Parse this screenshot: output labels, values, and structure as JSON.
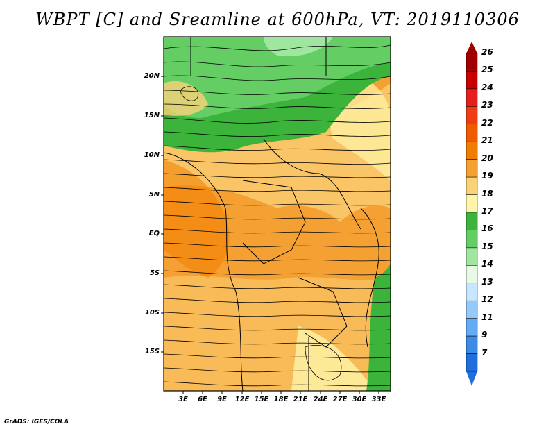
{
  "title": "WBPT [C] and Sreamline at 600hPa, VT: 2019110306",
  "footer": "GrADS: IGES/COLA",
  "lat_labels": [
    "20N",
    "15N",
    "10N",
    "5N",
    "EQ",
    "5S",
    "10S",
    "15S"
  ],
  "lon_labels": [
    "3E",
    "6E",
    "9E",
    "12E",
    "15E",
    "18E",
    "21E",
    "24E",
    "27E",
    "30E",
    "33E"
  ],
  "colorbar": {
    "labels": [
      "26",
      "25",
      "24",
      "23",
      "22",
      "21",
      "20",
      "19",
      "18",
      "17",
      "16",
      "15",
      "14",
      "13",
      "12",
      "11",
      "9",
      "7"
    ],
    "colors": [
      "#a00000",
      "#c80000",
      "#e61e1e",
      "#f03c14",
      "#f05a00",
      "#f07d00",
      "#f5a032",
      "#fad278",
      "#fff5aa",
      "#3cb43c",
      "#64cd64",
      "#a0e6a0",
      "#e6fae6",
      "#c8e6ff",
      "#96c8fa",
      "#64aaf5",
      "#3c8ce6",
      "#1e6edc"
    ]
  }
}
